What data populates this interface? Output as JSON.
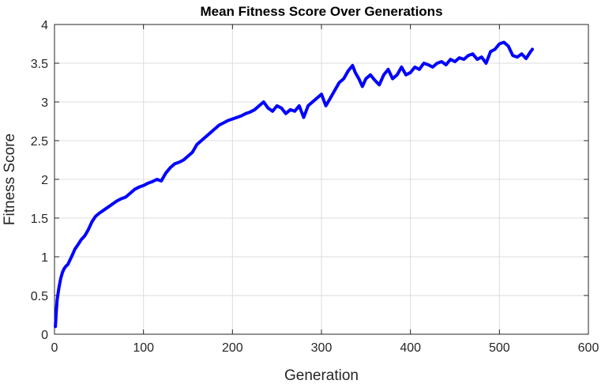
{
  "chart_data": {
    "type": "line",
    "title": "Mean Fitness Score Over Generations",
    "xlabel": "Generation",
    "ylabel": "Fitness Score",
    "xlim": [
      0,
      600
    ],
    "ylim": [
      0,
      4
    ],
    "xticks": [
      0,
      100,
      200,
      300,
      400,
      500,
      600
    ],
    "yticks": [
      0,
      0.5,
      1,
      1.5,
      2,
      2.5,
      3,
      3.5,
      4
    ],
    "xtick_labels": [
      "0",
      "100",
      "200",
      "300",
      "400",
      "500",
      "600"
    ],
    "ytick_labels": [
      "0",
      "0.5",
      "1",
      "1.5",
      "2",
      "2.5",
      "3",
      "3.5",
      "4"
    ],
    "grid": true,
    "line_color": "#0000ff",
    "series": [
      {
        "x": [
          1,
          2,
          3,
          5,
          7,
          9,
          11,
          13,
          15,
          17,
          20,
          23,
          26,
          30,
          34,
          38,
          42,
          46,
          50,
          55,
          60,
          65,
          70,
          75,
          80,
          85,
          90,
          95,
          100,
          105,
          110,
          115,
          120,
          125,
          130,
          135,
          140,
          145,
          150,
          155,
          160,
          165,
          170,
          175,
          180,
          185,
          190,
          195,
          200,
          205,
          210,
          215,
          220,
          225,
          230,
          235,
          240,
          245,
          250,
          255,
          260,
          265,
          270,
          275,
          280,
          285,
          290,
          295,
          300,
          305,
          310,
          315,
          320,
          325,
          330,
          335,
          338,
          342,
          346,
          350,
          355,
          360,
          365,
          370,
          375,
          380,
          385,
          390,
          395,
          400,
          405,
          410,
          415,
          420,
          425,
          430,
          435,
          440,
          445,
          450,
          455,
          460,
          465,
          470,
          475,
          480,
          485,
          490,
          495,
          500,
          505,
          510,
          515,
          520,
          525,
          530,
          535,
          537
        ],
        "y": [
          0.1,
          0.3,
          0.45,
          0.6,
          0.72,
          0.8,
          0.85,
          0.88,
          0.9,
          0.95,
          1.02,
          1.1,
          1.15,
          1.22,
          1.27,
          1.35,
          1.45,
          1.52,
          1.56,
          1.6,
          1.64,
          1.68,
          1.72,
          1.75,
          1.77,
          1.82,
          1.87,
          1.9,
          1.92,
          1.95,
          1.97,
          2.0,
          1.98,
          2.08,
          2.15,
          2.2,
          2.22,
          2.25,
          2.3,
          2.35,
          2.45,
          2.5,
          2.55,
          2.6,
          2.65,
          2.7,
          2.73,
          2.76,
          2.78,
          2.8,
          2.82,
          2.85,
          2.87,
          2.9,
          2.95,
          3.0,
          2.92,
          2.88,
          2.95,
          2.92,
          2.85,
          2.9,
          2.88,
          2.95,
          2.8,
          2.95,
          3.0,
          3.05,
          3.1,
          2.95,
          3.05,
          3.15,
          3.25,
          3.3,
          3.4,
          3.47,
          3.38,
          3.3,
          3.2,
          3.3,
          3.35,
          3.28,
          3.22,
          3.35,
          3.42,
          3.3,
          3.35,
          3.45,
          3.35,
          3.38,
          3.45,
          3.42,
          3.5,
          3.48,
          3.45,
          3.5,
          3.52,
          3.48,
          3.55,
          3.52,
          3.57,
          3.55,
          3.6,
          3.62,
          3.55,
          3.58,
          3.5,
          3.65,
          3.68,
          3.75,
          3.77,
          3.72,
          3.6,
          3.58,
          3.62,
          3.56,
          3.65,
          3.68
        ]
      }
    ]
  }
}
